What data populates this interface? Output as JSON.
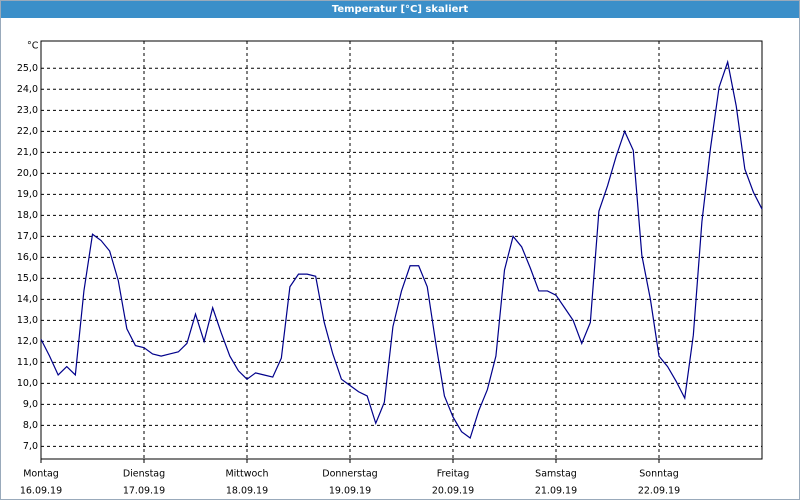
{
  "window_title": "Temperatur [°C] skaliert",
  "chart_data": {
    "type": "line",
    "y_label": "°C",
    "xlim": [
      0,
      168
    ],
    "ylim": [
      6.4,
      26.3
    ],
    "xticks": [
      {
        "value": 0,
        "label": "Montag"
      },
      {
        "value": 24,
        "label": "Dienstag"
      },
      {
        "value": 48,
        "label": "Mittwoch"
      },
      {
        "value": 72,
        "label": "Donnerstag"
      },
      {
        "value": 96,
        "label": "Freitag"
      },
      {
        "value": 120,
        "label": "Samstag"
      },
      {
        "value": 144,
        "label": "Sonntag"
      }
    ],
    "xtick_dates": [
      "16.09.19",
      "17.09.19",
      "18.09.19",
      "19.09.19",
      "20.09.19",
      "21.09.19",
      "22.09.19"
    ],
    "yticks": [
      {
        "value": 7,
        "label": "7,0"
      },
      {
        "value": 8,
        "label": "8,0"
      },
      {
        "value": 9,
        "label": "9,0"
      },
      {
        "value": 10,
        "label": "10,0"
      },
      {
        "value": 11,
        "label": "11,0"
      },
      {
        "value": 12,
        "label": "12,0"
      },
      {
        "value": 13,
        "label": "13,0"
      },
      {
        "value": 14,
        "label": "14,0"
      },
      {
        "value": 15,
        "label": "15,0"
      },
      {
        "value": 16,
        "label": "16,0"
      },
      {
        "value": 17,
        "label": "17,0"
      },
      {
        "value": 18,
        "label": "18,0"
      },
      {
        "value": 19,
        "label": "19,0"
      },
      {
        "value": 20,
        "label": "20,0"
      },
      {
        "value": 21,
        "label": "21,0"
      },
      {
        "value": 22,
        "label": "22,0"
      },
      {
        "value": 23,
        "label": "23,0"
      },
      {
        "value": 24,
        "label": "24,0"
      },
      {
        "value": 25,
        "label": "25,0"
      }
    ],
    "grid": true,
    "x": [
      0,
      2,
      4,
      6,
      8,
      10,
      12,
      14,
      16,
      18,
      20,
      22,
      24,
      26,
      28,
      30,
      32,
      34,
      36,
      38,
      40,
      42,
      44,
      46,
      48,
      50,
      52,
      54,
      56,
      58,
      60,
      62,
      64,
      66,
      68,
      70,
      72,
      74,
      76,
      78,
      80,
      82,
      84,
      86,
      88,
      90,
      92,
      94,
      96,
      98,
      100,
      102,
      104,
      106,
      108,
      110,
      112,
      114,
      116,
      118,
      120,
      122,
      124,
      126,
      128,
      130,
      132,
      134,
      136,
      138,
      140,
      142,
      144,
      146,
      148,
      150,
      152,
      154,
      156,
      158,
      160,
      162,
      164,
      166,
      168
    ],
    "series": [
      {
        "color": "#00008b",
        "values": [
          12.1,
          11.3,
          10.4,
          10.8,
          10.4,
          14.4,
          17.1,
          16.8,
          16.3,
          14.9,
          12.6,
          11.8,
          11.7,
          11.4,
          11.3,
          11.4,
          11.5,
          11.9,
          13.3,
          12.0,
          13.6,
          12.4,
          11.3,
          10.6,
          10.2,
          10.5,
          10.4,
          10.3,
          11.2,
          14.6,
          15.2,
          15.2,
          15.1,
          12.9,
          11.4,
          10.2,
          9.9,
          9.6,
          9.4,
          8.1,
          9.1,
          12.7,
          14.4,
          15.6,
          15.6,
          14.6,
          11.9,
          9.4,
          8.4,
          7.7,
          7.4,
          8.7,
          9.7,
          11.3,
          15.4,
          17.0,
          16.5,
          15.5,
          14.4,
          14.4,
          14.2,
          13.6,
          13.0,
          11.9,
          12.9,
          18.2,
          19.4,
          20.8,
          22.0,
          21.1,
          16.1,
          14.0,
          11.3,
          10.8,
          10.1,
          9.3,
          12.3,
          17.7,
          21.2,
          24.1,
          25.3,
          23.2,
          20.2,
          19.1,
          18.3
        ]
      }
    ]
  }
}
